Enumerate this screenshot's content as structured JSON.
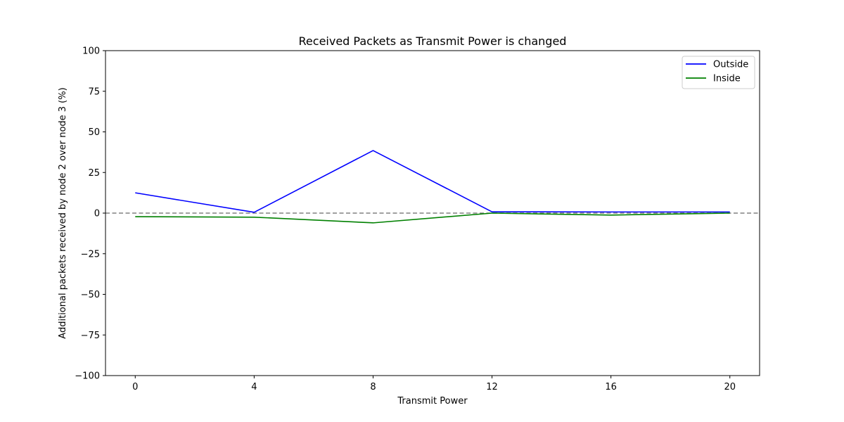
{
  "chart_data": {
    "type": "line",
    "title": "Received Packets as Transmit Power is changed",
    "xlabel": "Transmit Power",
    "ylabel": "Additional packets received by node 2 over node 3 (%)",
    "x": [
      0,
      4,
      8,
      12,
      16,
      20
    ],
    "xticks": [
      "0",
      "4",
      "8",
      "12",
      "16",
      "20"
    ],
    "yticks": [
      "100",
      "75",
      "50",
      "25",
      "0",
      "−25",
      "−50",
      "−75",
      "−100"
    ],
    "ytick_values": [
      100,
      75,
      50,
      25,
      0,
      -25,
      -50,
      -75,
      -100
    ],
    "xlim": [
      -1,
      21
    ],
    "ylim": [
      -100,
      100
    ],
    "grid": false,
    "legend_position": "top-right",
    "reference_line": {
      "y": 0,
      "style": "dashed",
      "color": "#808080"
    },
    "series": [
      {
        "name": "Outside",
        "color": "#0000ff",
        "values": [
          12.5,
          0.5,
          38.5,
          0.8,
          0.7,
          0.7
        ]
      },
      {
        "name": "Inside",
        "color": "#008000",
        "values": [
          -2.2,
          -2.5,
          -6.0,
          0.0,
          -1.2,
          0.0
        ]
      }
    ]
  }
}
